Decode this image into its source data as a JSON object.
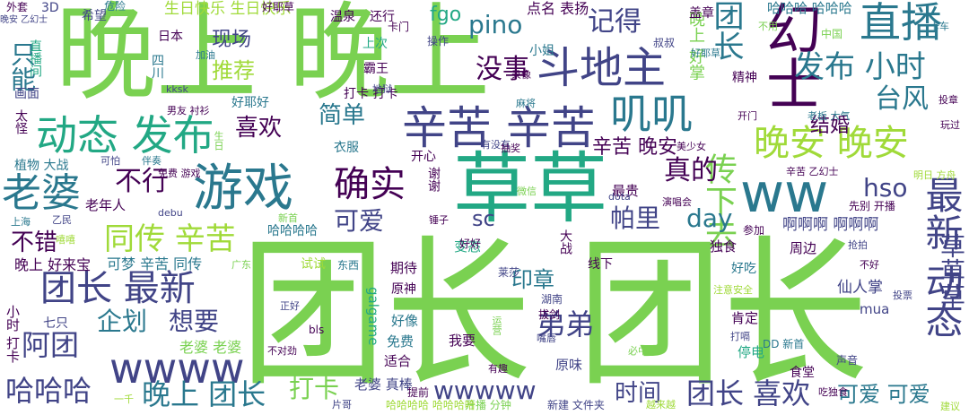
{
  "words": [
    {
      "text": "团长 团长",
      "color": "#7ad151"
    },
    {
      "text": "晚上 晚上",
      "color": "#7ad151"
    },
    {
      "text": "草草",
      "color": "#22a884"
    },
    {
      "text": "游戏",
      "color": "#2a788e"
    },
    {
      "text": "ww",
      "color": "#2a788e"
    },
    {
      "text": "辛苦 辛苦",
      "color": "#414487"
    },
    {
      "text": "斗地主",
      "color": "#414487"
    },
    {
      "text": "动态 发布",
      "color": "#22a884"
    },
    {
      "text": "直播",
      "color": "#2a788e"
    },
    {
      "text": "幻士",
      "color": "#440154"
    },
    {
      "text": "最新 动态",
      "color": "#414487"
    },
    {
      "text": "晚安 晚安",
      "color": "#a0da39"
    },
    {
      "text": "团长 最新",
      "color": "#414487"
    },
    {
      "text": "wwww",
      "color": "#414487"
    },
    {
      "text": "老婆",
      "color": "#2a788e"
    },
    {
      "text": "确实",
      "color": "#440154"
    },
    {
      "text": "叽叽",
      "color": "#2a788e"
    },
    {
      "text": "发布 小时",
      "color": "#2a788e"
    },
    {
      "text": "同传 辛苦",
      "color": "#a0da39"
    },
    {
      "text": "晚上 团长",
      "color": "#2a788e"
    },
    {
      "text": "团长 喜欢",
      "color": "#414487"
    },
    {
      "text": "wwwww",
      "color": "#414487"
    },
    {
      "text": "哈哈哈",
      "color": "#414487"
    },
    {
      "text": "阿团",
      "color": "#414487"
    },
    {
      "text": "弟弟",
      "color": "#414487"
    },
    {
      "text": "企划",
      "color": "#2a788e"
    },
    {
      "text": "想要",
      "color": "#414487"
    },
    {
      "text": "没事",
      "color": "#440154"
    },
    {
      "text": "记得",
      "color": "#414487"
    },
    {
      "text": "pino",
      "color": "#2a788e"
    },
    {
      "text": "团长",
      "color": "#2a788e"
    },
    {
      "text": "传下去",
      "color": "#7ad151"
    },
    {
      "text": "喜欢",
      "color": "#440154"
    },
    {
      "text": "简单",
      "color": "#2a788e"
    },
    {
      "text": "台风",
      "color": "#2a788e"
    },
    {
      "text": "不行",
      "color": "#440154"
    },
    {
      "text": "真的",
      "color": "#440154"
    },
    {
      "text": "可爱",
      "color": "#414487"
    },
    {
      "text": "帕里",
      "color": "#414487"
    },
    {
      "text": "day",
      "color": "#2a788e"
    },
    {
      "text": "hso",
      "color": "#414487"
    },
    {
      "text": "辛苦 晚安",
      "color": "#440154"
    },
    {
      "text": "草草草",
      "color": "#414487"
    },
    {
      "text": "打卡",
      "color": "#7ad151"
    },
    {
      "text": "时间",
      "color": "#414487"
    },
    {
      "text": "印章",
      "color": "#2a788e"
    },
    {
      "text": "可爱 可爱",
      "color": "#2a788e"
    },
    {
      "text": "不错",
      "color": "#440154"
    },
    {
      "text": "只能",
      "color": "#2a788e"
    },
    {
      "text": "推荐",
      "color": "#a0da39"
    },
    {
      "text": "现场",
      "color": "#414487"
    },
    {
      "text": "结婚",
      "color": "#440154"
    },
    {
      "text": "sc",
      "color": "#414487"
    },
    {
      "text": "fgo",
      "color": "#22a884"
    },
    {
      "text": "点名 表扬",
      "color": "#440154"
    },
    {
      "text": "哈哈哈 哈哈哈",
      "color": "#2a788e"
    },
    {
      "text": "生日快乐 生日快乐",
      "color": "#a0da39"
    },
    {
      "text": "啊啊啊 啊啊啊",
      "color": "#414487"
    },
    {
      "text": "晚上 好来宝",
      "color": "#440154"
    },
    {
      "text": "可梦 辛苦 同传",
      "color": "#2a788e"
    },
    {
      "text": "老年人",
      "color": "#440154"
    },
    {
      "text": "晚上 好掌",
      "color": "#7ad151"
    },
    {
      "text": "仙人掌",
      "color": "#414487"
    },
    {
      "text": "哈哈哈哈",
      "color": "#2a788e"
    },
    {
      "text": "小姐",
      "color": "#2a788e"
    },
    {
      "text": "最贵",
      "color": "#440154"
    },
    {
      "text": "独食",
      "color": "#440154"
    },
    {
      "text": "周边",
      "color": "#440154"
    },
    {
      "text": "mua",
      "color": "#414487"
    },
    {
      "text": "肯定",
      "color": "#440154"
    },
    {
      "text": "好吃",
      "color": "#2a788e"
    },
    {
      "text": "原神",
      "color": "#440154"
    },
    {
      "text": "好像",
      "color": "#2a788e"
    },
    {
      "text": "我要",
      "color": "#440154"
    },
    {
      "text": "免费",
      "color": "#2a788e"
    },
    {
      "text": "适合",
      "color": "#440154"
    },
    {
      "text": "原味",
      "color": "#414487"
    },
    {
      "text": "停电",
      "color": "#22a884"
    },
    {
      "text": "食堂",
      "color": "#440154"
    },
    {
      "text": "老婆 真棒",
      "color": "#414487"
    },
    {
      "text": "线下",
      "color": "#440154"
    },
    {
      "text": "期待",
      "color": "#440154"
    },
    {
      "text": "变态",
      "color": "#22a884"
    },
    {
      "text": "试试",
      "color": "#a0da39"
    },
    {
      "text": "东西",
      "color": "#2a788e"
    },
    {
      "text": "大战",
      "color": "#440154"
    },
    {
      "text": "植物 大战",
      "color": "#2a788e"
    },
    {
      "text": "开心",
      "color": "#440154"
    },
    {
      "text": "谢谢",
      "color": "#440154"
    },
    {
      "text": "衣服",
      "color": "#2a788e"
    },
    {
      "text": "还行",
      "color": "#440154"
    },
    {
      "text": "温泉",
      "color": "#440154"
    },
    {
      "text": "上次",
      "color": "#22a884"
    },
    {
      "text": "霸王",
      "color": "#440154"
    },
    {
      "text": "打卡 打卡",
      "color": "#440154"
    },
    {
      "text": "希望",
      "color": "#414487"
    },
    {
      "text": "日本",
      "color": "#440154"
    },
    {
      "text": "3D",
      "color": "#414487"
    },
    {
      "text": "四川",
      "color": "#2a788e"
    },
    {
      "text": "精神",
      "color": "#440154"
    },
    {
      "text": "叔叔",
      "color": "#414487"
    },
    {
      "text": "盖章",
      "color": "#440154"
    },
    {
      "text": "中国",
      "color": "#7ad151"
    },
    {
      "text": "好耶好",
      "color": "#2a788e"
    },
    {
      "text": "画面",
      "color": "#414487"
    },
    {
      "text": "太怪",
      "color": "#440154"
    },
    {
      "text": "直播间",
      "color": "#22a884"
    },
    {
      "text": "卡门",
      "color": "#440154"
    },
    {
      "text": "操作",
      "color": "#414487"
    },
    {
      "text": "危险",
      "color": "#2a788e"
    },
    {
      "text": "好耶草",
      "color": "#440154"
    },
    {
      "text": "先别 开播",
      "color": "#440154"
    },
    {
      "text": "参加",
      "color": "#440154"
    },
    {
      "text": "莱莎",
      "color": "#414487"
    },
    {
      "text": "galgame",
      "color": "#22a884"
    },
    {
      "text": "老婆 老婆",
      "color": "#7ad151"
    },
    {
      "text": "提前",
      "color": "#440154"
    },
    {
      "text": "开播 分钟",
      "color": "#7ad151"
    },
    {
      "text": "哈哈哈哈 哈哈哈哈",
      "color": "#a0da39"
    },
    {
      "text": "新建 文件夹",
      "color": "#414487"
    },
    {
      "text": "建议",
      "color": "#a0da39"
    },
    {
      "text": "小时 打卡",
      "color": "#440154"
    },
    {
      "text": "七只",
      "color": "#414487"
    },
    {
      "text": "声音",
      "color": "#414487"
    },
    {
      "text": "吃独食",
      "color": "#440154"
    },
    {
      "text": "好好",
      "color": "#440154"
    },
    {
      "text": "湖南",
      "color": "#414487"
    },
    {
      "text": "拔剑",
      "color": "#440154"
    },
    {
      "text": "嘴唇",
      "color": "#414487"
    },
    {
      "text": "有趣",
      "color": "#440154"
    },
    {
      "text": "bls",
      "color": "#440154"
    },
    {
      "text": "一千",
      "color": "#a0da39"
    },
    {
      "text": "片哥",
      "color": "#414487"
    },
    {
      "text": "正好",
      "color": "#414487"
    },
    {
      "text": "不对劲",
      "color": "#440154"
    },
    {
      "text": "运营",
      "color": "#7ad151"
    },
    {
      "text": "越来越",
      "color": "#a0da39"
    },
    {
      "text": "必中",
      "color": "#7ad151"
    },
    {
      "text": "DD 新首",
      "color": "#2a788e"
    },
    {
      "text": "打嗝",
      "color": "#414487"
    },
    {
      "text": "不好",
      "color": "#440154"
    },
    {
      "text": "抢拍",
      "color": "#414487"
    },
    {
      "text": "注意安全",
      "color": "#a0da39"
    },
    {
      "text": "投票",
      "color": "#414487"
    },
    {
      "text": "外套",
      "color": "#440154"
    },
    {
      "text": "晚安 乙幻士",
      "color": "#414487"
    },
    {
      "text": "加油",
      "color": "#2a788e"
    },
    {
      "text": "kksk",
      "color": "#414487"
    },
    {
      "text": "地狱",
      "color": "#414487"
    },
    {
      "text": "男友 衬衫",
      "color": "#440154"
    },
    {
      "text": "生日",
      "color": "#7ad151"
    },
    {
      "text": "可怕",
      "color": "#414487"
    },
    {
      "text": "伴奏",
      "color": "#2a788e"
    },
    {
      "text": "免费 游戏",
      "color": "#440154"
    },
    {
      "text": "上海",
      "color": "#2a788e"
    },
    {
      "text": "乙民",
      "color": "#414487"
    },
    {
      "text": "嘻嘻",
      "color": "#a0da39"
    },
    {
      "text": "debu",
      "color": "#414487"
    },
    {
      "text": "新首",
      "color": "#7ad151"
    },
    {
      "text": "广东",
      "color": "#7ad151"
    },
    {
      "text": "锤子",
      "color": "#440154"
    },
    {
      "text": "微信",
      "color": "#7ad151"
    },
    {
      "text": "dota",
      "color": "#414487"
    },
    {
      "text": "演唱会",
      "color": "#440154"
    },
    {
      "text": "辛苦 乙幻士",
      "color": "#440154"
    },
    {
      "text": "明日 方舟",
      "color": "#a0da39"
    },
    {
      "text": "投章",
      "color": "#440154"
    },
    {
      "text": "玩过",
      "color": "#440154"
    },
    {
      "text": "开门",
      "color": "#440154"
    },
    {
      "text": "老板 大气",
      "color": "#2a788e"
    },
    {
      "text": "美少女",
      "color": "#440154"
    },
    {
      "text": "有没有",
      "color": "#414487"
    },
    {
      "text": "抽奖",
      "color": "#440154"
    },
    {
      "text": "录像",
      "color": "#440154"
    },
    {
      "text": "麻将",
      "color": "#2a788e"
    },
    {
      "text": "好耶草",
      "color": "#2a788e"
    },
    {
      "text": "不用",
      "color": "#7ad151"
    },
    {
      "text": "卡车",
      "color": "#2a788e"
    }
  ]
}
